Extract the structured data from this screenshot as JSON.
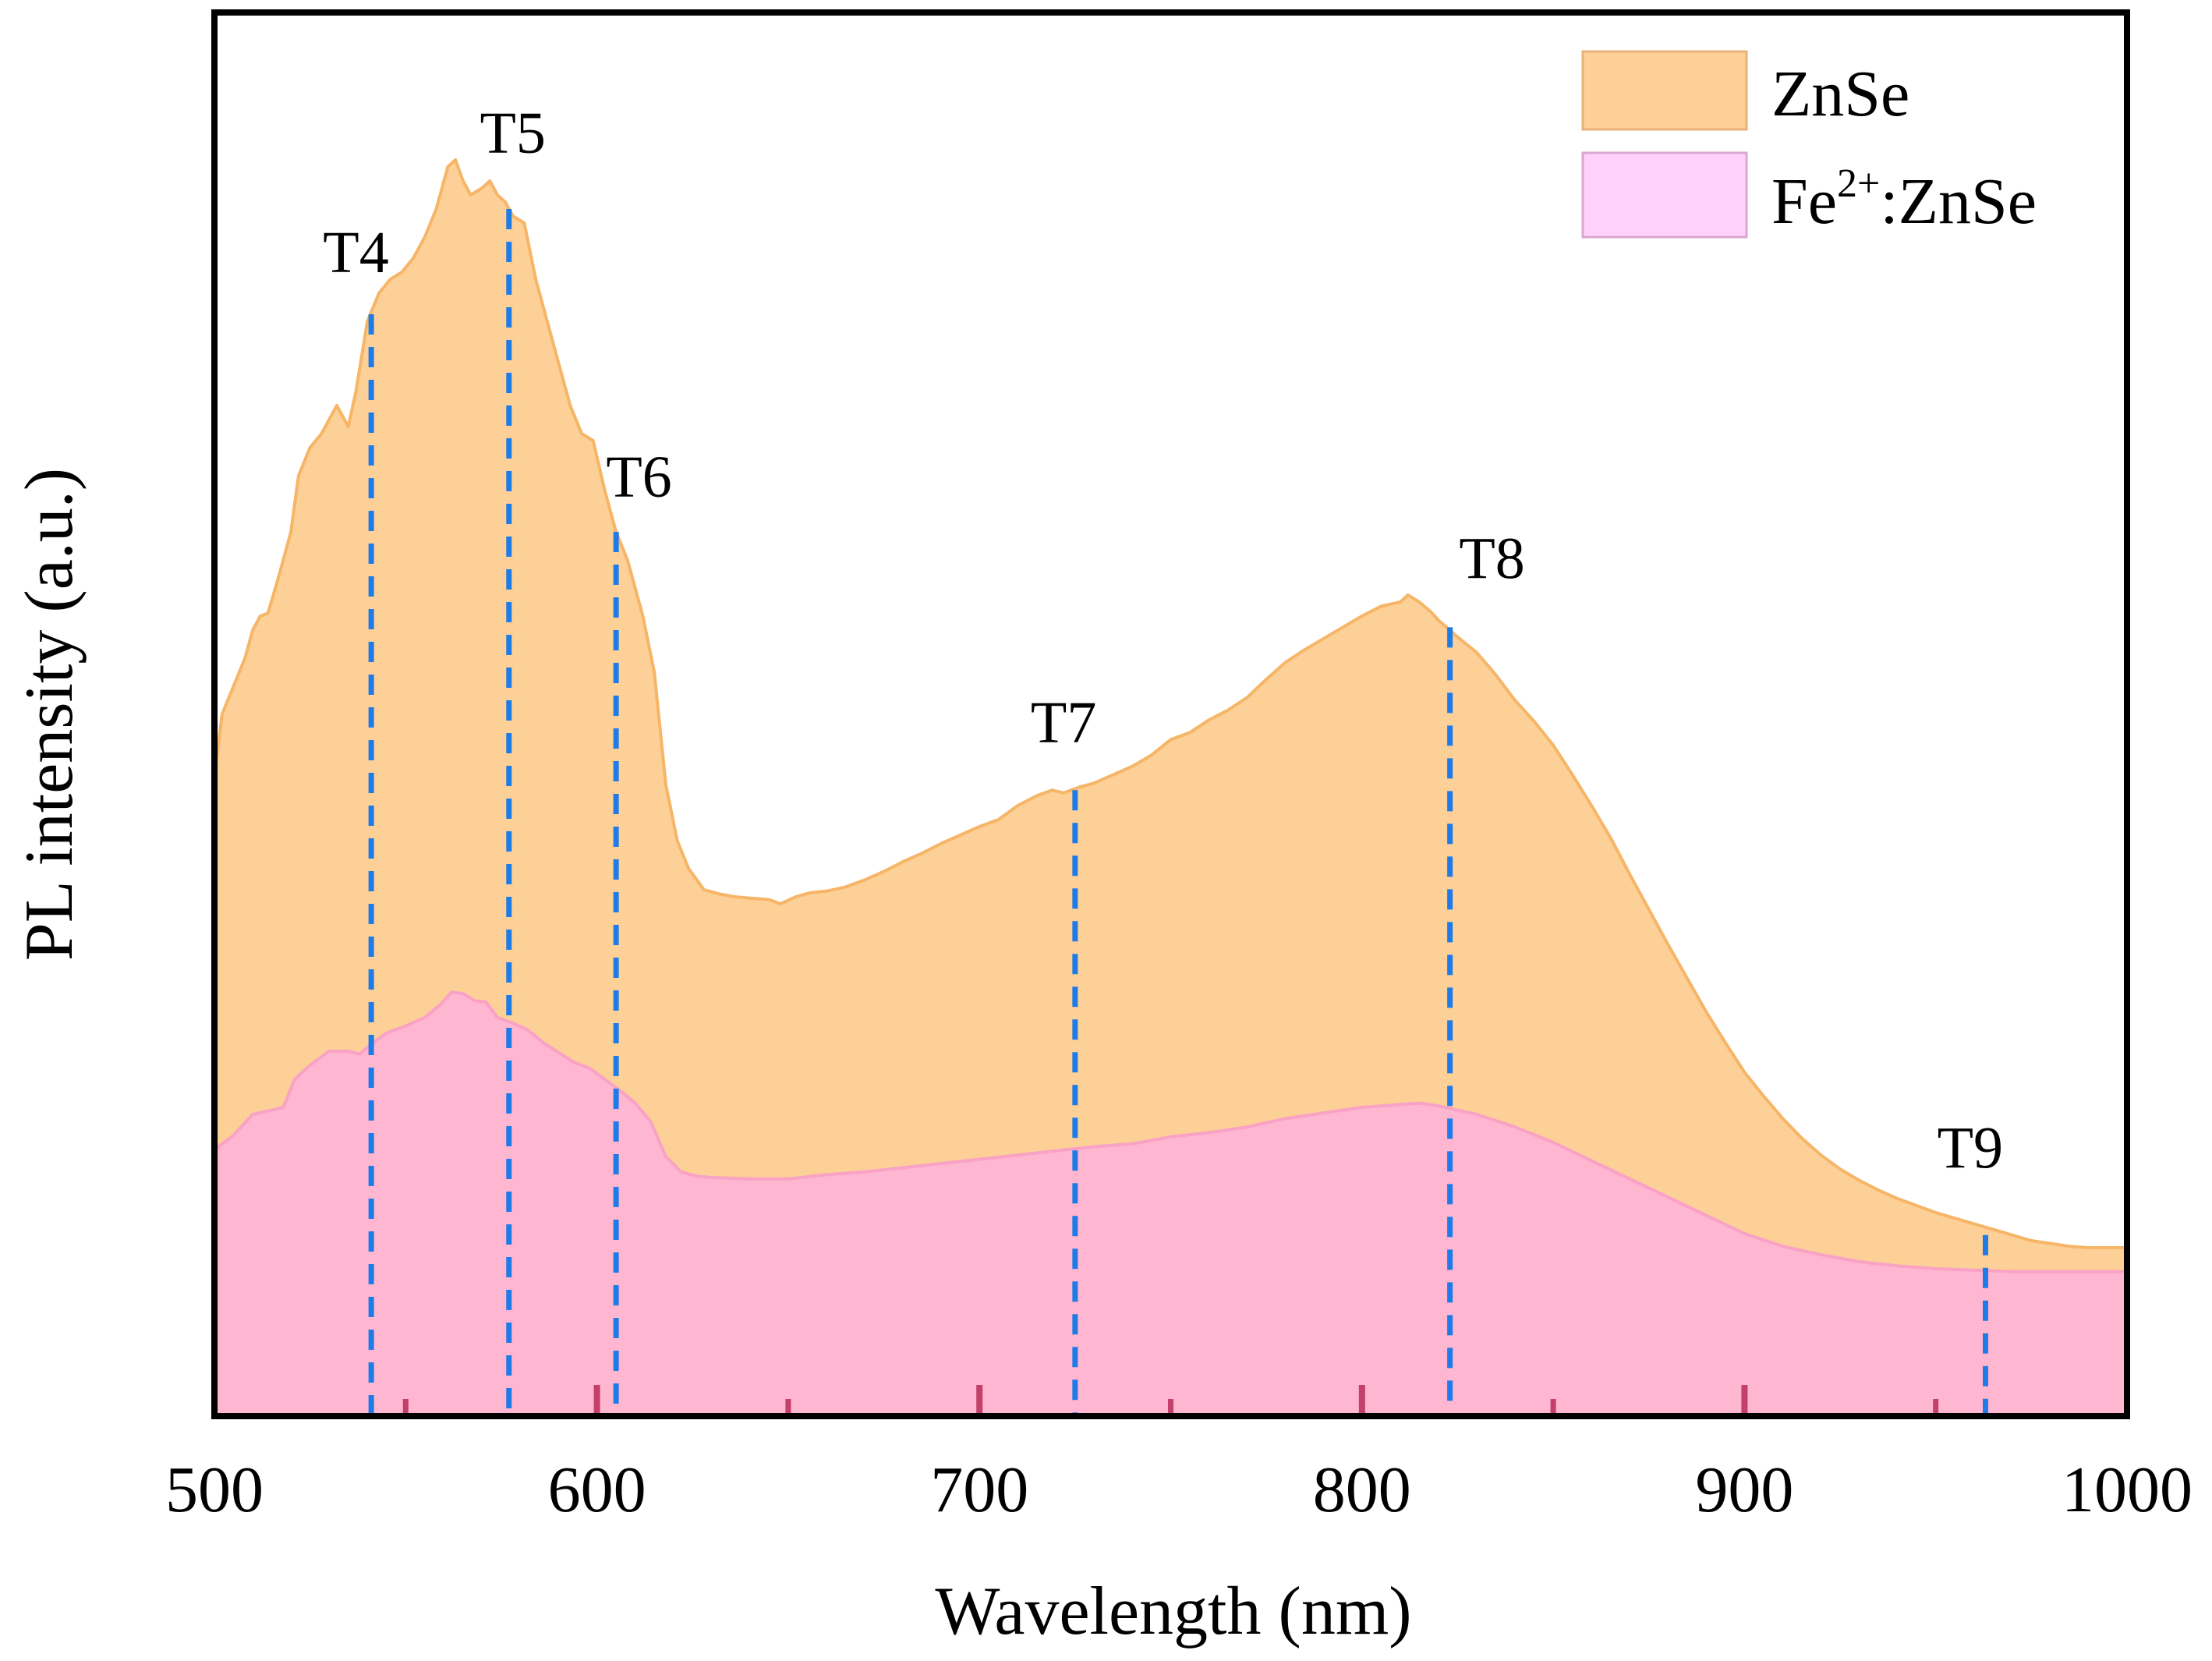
{
  "chart_data": {
    "type": "area",
    "title": "",
    "xlabel": "Wavelength (nm)",
    "ylabel": "PL intensity (a.u.)",
    "xlim": [
      500,
      1000
    ],
    "ylim": [
      0,
      100
    ],
    "x_ticks": [
      500,
      600,
      700,
      800,
      900,
      1000
    ],
    "x_tick_labels": [
      "500",
      "600",
      "700",
      "800",
      "900",
      "1000"
    ],
    "minor_x_ticks": [
      550,
      650,
      750,
      850,
      950
    ],
    "y_ticks_shown": false,
    "grid": false,
    "legend_position": "top-right",
    "series": [
      {
        "name": "ZnSe",
        "fill_color": "#fcd097",
        "line_color": "#f6b567",
        "points": [
          [
            500,
            45.5
          ],
          [
            502,
            50
          ],
          [
            505,
            52
          ],
          [
            508,
            54
          ],
          [
            510,
            56
          ],
          [
            512,
            57
          ],
          [
            514,
            57.2
          ],
          [
            517,
            60
          ],
          [
            520,
            63
          ],
          [
            522,
            67
          ],
          [
            525,
            69
          ],
          [
            528,
            70
          ],
          [
            530,
            71
          ],
          [
            532,
            72
          ],
          [
            535,
            70.5
          ],
          [
            537,
            73
          ],
          [
            540,
            78
          ],
          [
            543,
            80
          ],
          [
            546,
            81
          ],
          [
            549,
            81.5
          ],
          [
            552,
            82.5
          ],
          [
            555,
            84
          ],
          [
            558,
            86
          ],
          [
            561,
            89
          ],
          [
            563,
            89.5
          ],
          [
            565,
            88
          ],
          [
            567,
            87
          ],
          [
            570,
            87.5
          ],
          [
            572,
            88
          ],
          [
            574,
            87
          ],
          [
            576,
            86.5
          ],
          [
            578,
            85.5
          ],
          [
            581,
            85
          ],
          [
            584,
            81
          ],
          [
            587,
            78
          ],
          [
            590,
            75
          ],
          [
            593,
            72
          ],
          [
            596,
            70
          ],
          [
            599,
            69.5
          ],
          [
            602,
            66
          ],
          [
            605,
            63
          ],
          [
            608,
            61
          ],
          [
            612,
            57
          ],
          [
            615,
            53
          ],
          [
            618,
            45
          ],
          [
            621,
            41
          ],
          [
            624,
            39
          ],
          [
            628,
            37.5
          ],
          [
            632,
            37.2
          ],
          [
            636,
            37
          ],
          [
            640,
            36.9
          ],
          [
            645,
            36.8
          ],
          [
            648,
            36.5
          ],
          [
            652,
            37
          ],
          [
            656,
            37.3
          ],
          [
            660,
            37.4
          ],
          [
            665,
            37.7
          ],
          [
            670,
            38.2
          ],
          [
            675,
            38.8
          ],
          [
            680,
            39.5
          ],
          [
            685,
            40.1
          ],
          [
            690,
            40.8
          ],
          [
            695,
            41.4
          ],
          [
            700,
            42
          ],
          [
            705,
            42.5
          ],
          [
            710,
            43.5
          ],
          [
            715,
            44.2
          ],
          [
            719,
            44.6
          ],
          [
            722,
            44.4
          ],
          [
            726,
            44.8
          ],
          [
            730,
            45.1
          ],
          [
            735,
            45.7
          ],
          [
            740,
            46.3
          ],
          [
            745,
            47.1
          ],
          [
            750,
            48.2
          ],
          [
            755,
            48.7
          ],
          [
            760,
            49.6
          ],
          [
            765,
            50.3
          ],
          [
            770,
            51.2
          ],
          [
            775,
            52.5
          ],
          [
            780,
            53.7
          ],
          [
            785,
            54.6
          ],
          [
            790,
            55.4
          ],
          [
            795,
            56.2
          ],
          [
            800,
            57
          ],
          [
            805,
            57.7
          ],
          [
            810,
            58
          ],
          [
            812,
            58.5
          ],
          [
            815,
            58
          ],
          [
            818,
            57.3
          ],
          [
            820,
            56.7
          ],
          [
            825,
            55.5
          ],
          [
            830,
            54.4
          ],
          [
            835,
            52.8
          ],
          [
            840,
            51
          ],
          [
            845,
            49.5
          ],
          [
            850,
            47.8
          ],
          [
            855,
            45.7
          ],
          [
            860,
            43.5
          ],
          [
            865,
            41.2
          ],
          [
            870,
            38.6
          ],
          [
            875,
            36.1
          ],
          [
            880,
            33.6
          ],
          [
            885,
            31.2
          ],
          [
            890,
            28.8
          ],
          [
            895,
            26.6
          ],
          [
            900,
            24.5
          ],
          [
            905,
            22.8
          ],
          [
            910,
            21.2
          ],
          [
            915,
            19.8
          ],
          [
            920,
            18.6
          ],
          [
            925,
            17.6
          ],
          [
            930,
            16.8
          ],
          [
            935,
            16.1
          ],
          [
            940,
            15.5
          ],
          [
            945,
            15
          ],
          [
            950,
            14.5
          ],
          [
            955,
            14.1
          ],
          [
            960,
            13.7
          ],
          [
            965,
            13.3
          ],
          [
            970,
            12.9
          ],
          [
            975,
            12.5
          ],
          [
            980,
            12.3
          ],
          [
            985,
            12.1
          ],
          [
            990,
            12
          ],
          [
            995,
            12
          ],
          [
            1000,
            12
          ]
        ]
      },
      {
        "name": "Fe2+:ZnSe",
        "fill_color": "#ffb6d0",
        "line_color": "#f9a2c6",
        "points": [
          [
            500,
            19
          ],
          [
            505,
            20
          ],
          [
            510,
            21.5
          ],
          [
            515,
            21.8
          ],
          [
            518,
            22
          ],
          [
            521,
            24
          ],
          [
            525,
            25
          ],
          [
            530,
            26
          ],
          [
            535,
            26
          ],
          [
            538,
            25.8
          ],
          [
            541,
            26.5
          ],
          [
            545,
            27.3
          ],
          [
            550,
            27.8
          ],
          [
            555,
            28.4
          ],
          [
            559,
            29.3
          ],
          [
            562,
            30.2
          ],
          [
            565,
            30.1
          ],
          [
            568,
            29.6
          ],
          [
            571,
            29.5
          ],
          [
            574,
            28.4
          ],
          [
            578,
            28
          ],
          [
            582,
            27.5
          ],
          [
            586,
            26.6
          ],
          [
            590,
            25.9
          ],
          [
            594,
            25.2
          ],
          [
            598,
            24.8
          ],
          [
            602,
            24
          ],
          [
            606,
            23.2
          ],
          [
            610,
            22.3
          ],
          [
            614,
            21
          ],
          [
            618,
            18.5
          ],
          [
            622,
            17.4
          ],
          [
            626,
            17.1
          ],
          [
            630,
            17
          ],
          [
            640,
            16.9
          ],
          [
            650,
            16.9
          ],
          [
            660,
            17.2
          ],
          [
            670,
            17.4
          ],
          [
            680,
            17.7
          ],
          [
            690,
            18
          ],
          [
            700,
            18.3
          ],
          [
            710,
            18.6
          ],
          [
            720,
            18.9
          ],
          [
            730,
            19.2
          ],
          [
            740,
            19.4
          ],
          [
            750,
            19.9
          ],
          [
            760,
            20.2
          ],
          [
            770,
            20.6
          ],
          [
            780,
            21.2
          ],
          [
            790,
            21.6
          ],
          [
            800,
            22
          ],
          [
            810,
            22.2
          ],
          [
            815,
            22.3
          ],
          [
            820,
            22.1
          ],
          [
            830,
            21.5
          ],
          [
            840,
            20.6
          ],
          [
            850,
            19.5
          ],
          [
            860,
            18.2
          ],
          [
            870,
            16.9
          ],
          [
            880,
            15.6
          ],
          [
            890,
            14.3
          ],
          [
            900,
            13
          ],
          [
            910,
            12.1
          ],
          [
            920,
            11.5
          ],
          [
            930,
            11
          ],
          [
            940,
            10.7
          ],
          [
            950,
            10.5
          ],
          [
            960,
            10.4
          ],
          [
            970,
            10.3
          ],
          [
            980,
            10.3
          ],
          [
            990,
            10.3
          ],
          [
            1000,
            10.3
          ]
        ]
      }
    ],
    "annotations": [
      {
        "label": "T4",
        "x": 541,
        "y_top": 78.5,
        "label_x": 537,
        "label_y": 81.5
      },
      {
        "label": "T5",
        "x": 577,
        "y_top": 86,
        "label_x": 578,
        "label_y": 90
      },
      {
        "label": "T6",
        "x": 605,
        "y_top": 63,
        "label_x": 611,
        "label_y": 65.5
      },
      {
        "label": "T7",
        "x": 725,
        "y_top": 44.6,
        "label_x": 722,
        "label_y": 48
      },
      {
        "label": "T8",
        "x": 823,
        "y_top": 56.2,
        "label_x": 834,
        "label_y": 59.7
      },
      {
        "label": "T9",
        "x": 963,
        "y_top": 12.9,
        "label_x": 959,
        "label_y": 17.7
      }
    ],
    "annotation_line_color": "#1e7be8",
    "axis_tick_color": "#c2406a"
  },
  "legend": {
    "items": [
      {
        "label": "ZnSe",
        "color": "#fcd097",
        "border": "#e9b27a"
      },
      {
        "label": "Fe",
        "sup": "2+",
        "suffix": ":ZnSe",
        "color": "#ffd1fb",
        "border": "#d8a8d2"
      }
    ]
  }
}
